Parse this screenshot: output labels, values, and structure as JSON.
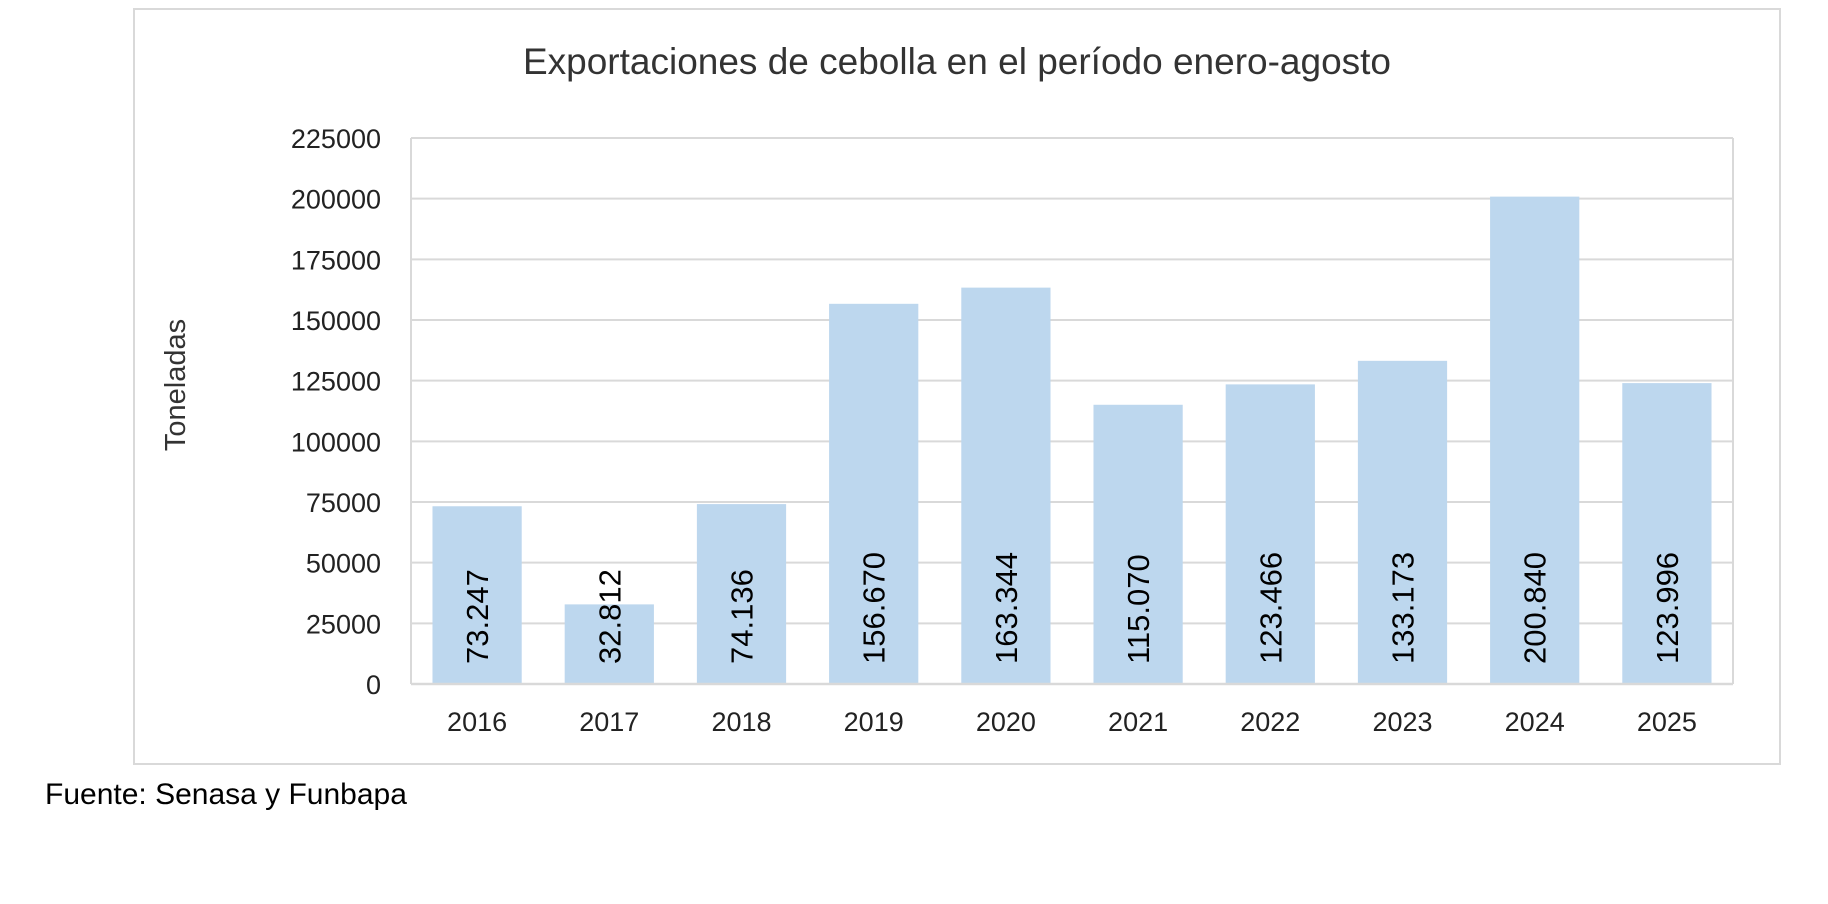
{
  "chart_data": {
    "type": "bar",
    "title": "Exportaciones de cebolla en el período enero-agosto",
    "xlabel": "",
    "ylabel": "Toneladas",
    "categories": [
      "2016",
      "2017",
      "2018",
      "2019",
      "2020",
      "2021",
      "2022",
      "2023",
      "2024",
      "2025"
    ],
    "values": [
      73247,
      32812,
      74136,
      156670,
      163344,
      115070,
      123466,
      133173,
      200840,
      123996
    ],
    "data_labels": [
      "73.247",
      "32.812",
      "74.136",
      "156.670",
      "163.344",
      "115.070",
      "123.466",
      "133.173",
      "200.840",
      "123.996"
    ],
    "ylim": [
      0,
      225000
    ],
    "yticks": [
      "0",
      "25000",
      "50000",
      "75000",
      "100000",
      "125000",
      "150000",
      "175000",
      "200000",
      "225000"
    ],
    "grid": true,
    "bar_color": "#bdd7ee",
    "grid_color": "#d9d9d9"
  },
  "footer": {
    "source": "Fuente: Senasa y Funbapa"
  }
}
